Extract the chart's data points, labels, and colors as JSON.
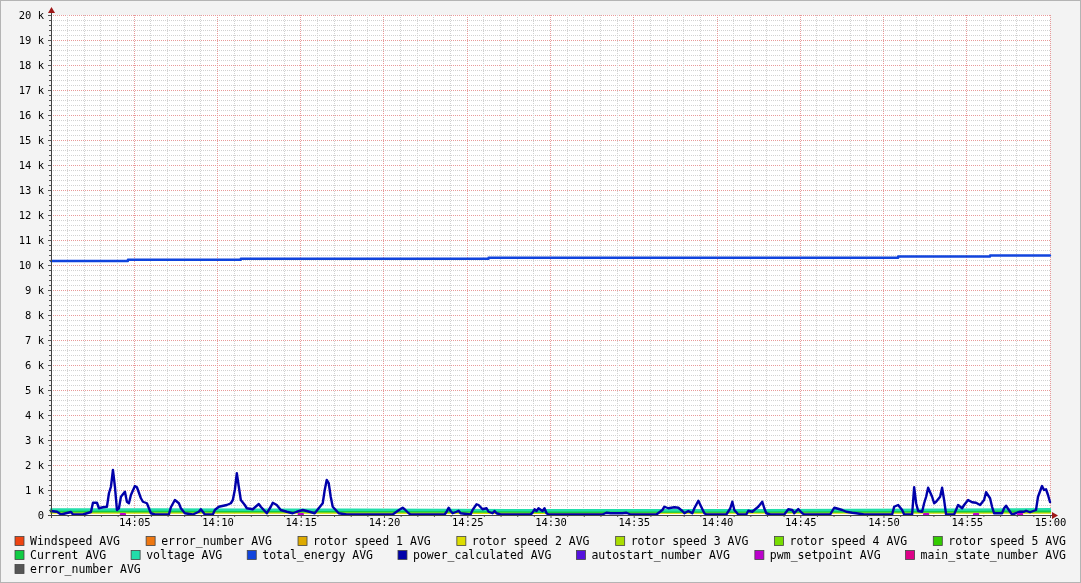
{
  "chart_data": {
    "type": "line",
    "xlim": [
      14,
      15
    ],
    "ylim": [
      0,
      20000
    ],
    "grid": true,
    "legend": "bottom",
    "xticks": [
      {
        "value": 14.0167,
        "label": null
      },
      {
        "value": 14.0333,
        "label": null
      },
      {
        "value": 14.05,
        "label": null
      },
      {
        "value": 14.0667,
        "label": null
      },
      {
        "value": 14.0833,
        "label": "14:05"
      },
      {
        "value": 14.1,
        "label": null
      },
      {
        "value": 14.1167,
        "label": null
      },
      {
        "value": 14.1333,
        "label": null
      },
      {
        "value": 14.15,
        "label": null
      },
      {
        "value": 14.1667,
        "label": "14:10"
      },
      {
        "value": 14.1833,
        "label": null
      },
      {
        "value": 14.2,
        "label": null
      },
      {
        "value": 14.2167,
        "label": null
      },
      {
        "value": 14.2333,
        "label": null
      },
      {
        "value": 14.25,
        "label": "14:15"
      },
      {
        "value": 14.2667,
        "label": null
      },
      {
        "value": 14.2833,
        "label": null
      },
      {
        "value": 14.3,
        "label": null
      },
      {
        "value": 14.3167,
        "label": null
      },
      {
        "value": 14.3333,
        "label": "14:20"
      },
      {
        "value": 14.35,
        "label": null
      },
      {
        "value": 14.3667,
        "label": null
      },
      {
        "value": 14.3833,
        "label": null
      },
      {
        "value": 14.4,
        "label": null
      },
      {
        "value": 14.4167,
        "label": "14:25"
      },
      {
        "value": 14.4333,
        "label": null
      },
      {
        "value": 14.45,
        "label": null
      },
      {
        "value": 14.4667,
        "label": null
      },
      {
        "value": 14.4833,
        "label": null
      },
      {
        "value": 14.5,
        "label": "14:30"
      },
      {
        "value": 14.5167,
        "label": null
      },
      {
        "value": 14.5333,
        "label": null
      },
      {
        "value": 14.55,
        "label": null
      },
      {
        "value": 14.5667,
        "label": null
      },
      {
        "value": 14.5833,
        "label": "14:35"
      },
      {
        "value": 14.6,
        "label": null
      },
      {
        "value": 14.6167,
        "label": null
      },
      {
        "value": 14.6333,
        "label": null
      },
      {
        "value": 14.65,
        "label": null
      },
      {
        "value": 14.6667,
        "label": "14:40"
      },
      {
        "value": 14.6833,
        "label": null
      },
      {
        "value": 14.7,
        "label": null
      },
      {
        "value": 14.7167,
        "label": null
      },
      {
        "value": 14.7333,
        "label": null
      },
      {
        "value": 14.75,
        "label": "14:45"
      },
      {
        "value": 14.7667,
        "label": null
      },
      {
        "value": 14.7833,
        "label": null
      },
      {
        "value": 14.8,
        "label": null
      },
      {
        "value": 14.8167,
        "label": null
      },
      {
        "value": 14.8333,
        "label": "14:50"
      },
      {
        "value": 14.85,
        "label": null
      },
      {
        "value": 14.8667,
        "label": null
      },
      {
        "value": 14.8833,
        "label": null
      },
      {
        "value": 14.9,
        "label": null
      },
      {
        "value": 14.9167,
        "label": "14:55"
      },
      {
        "value": 14.9333,
        "label": null
      },
      {
        "value": 14.95,
        "label": null
      },
      {
        "value": 14.9667,
        "label": null
      },
      {
        "value": 14.9833,
        "label": null
      },
      {
        "value": 15,
        "label": "15:00"
      }
    ],
    "yticks": [
      0,
      {
        "value": 200,
        "label": null
      },
      {
        "value": 400,
        "label": null
      },
      {
        "value": 600,
        "label": null
      },
      {
        "value": 800,
        "label": null
      },
      {
        "value": 1000,
        "label": "1 k"
      },
      {
        "value": 1200,
        "label": null
      },
      {
        "value": 1400,
        "label": null
      },
      {
        "value": 1600,
        "label": null
      },
      {
        "value": 1800,
        "label": null
      },
      {
        "value": 2000,
        "label": "2 k"
      },
      {
        "value": 2200,
        "label": null
      },
      {
        "value": 2400,
        "label": null
      },
      {
        "value": 2600,
        "label": null
      },
      {
        "value": 2800,
        "label": null
      },
      {
        "value": 3000,
        "label": "3 k"
      },
      {
        "value": 3200,
        "label": null
      },
      {
        "value": 3400,
        "label": null
      },
      {
        "value": 3600,
        "label": null
      },
      {
        "value": 3800,
        "label": null
      },
      {
        "value": 4000,
        "label": "4 k"
      },
      {
        "value": 4200,
        "label": null
      },
      {
        "value": 4400,
        "label": null
      },
      {
        "value": 4600,
        "label": null
      },
      {
        "value": 4800,
        "label": null
      },
      {
        "value": 5000,
        "label": "5 k"
      },
      {
        "value": 5200,
        "label": null
      },
      {
        "value": 5400,
        "label": null
      },
      {
        "value": 5600,
        "label": null
      },
      {
        "value": 5800,
        "label": null
      },
      {
        "value": 6000,
        "label": "6 k"
      },
      {
        "value": 6200,
        "label": null
      },
      {
        "value": 6400,
        "label": null
      },
      {
        "value": 6600,
        "label": null
      },
      {
        "value": 6800,
        "label": null
      },
      {
        "value": 7000,
        "label": "7 k"
      },
      {
        "value": 7200,
        "label": null
      },
      {
        "value": 7400,
        "label": null
      },
      {
        "value": 7600,
        "label": null
      },
      {
        "value": 7800,
        "label": null
      },
      {
        "value": 8000,
        "label": "8 k"
      },
      {
        "value": 8200,
        "label": null
      },
      {
        "value": 8400,
        "label": null
      },
      {
        "value": 8600,
        "label": null
      },
      {
        "value": 8800,
        "label": null
      },
      {
        "value": 9000,
        "label": "9 k"
      },
      {
        "value": 9200,
        "label": null
      },
      {
        "value": 9400,
        "label": null
      },
      {
        "value": 9600,
        "label": null
      },
      {
        "value": 9800,
        "label": null
      },
      {
        "value": 10000,
        "label": "10 k"
      },
      {
        "value": 10200,
        "label": null
      },
      {
        "value": 10400,
        "label": null
      },
      {
        "value": 10600,
        "label": null
      },
      {
        "value": 10800,
        "label": null
      },
      {
        "value": 11000,
        "label": "11 k"
      },
      {
        "value": 11200,
        "label": null
      },
      {
        "value": 11400,
        "label": null
      },
      {
        "value": 11600,
        "label": null
      },
      {
        "value": 11800,
        "label": null
      },
      {
        "value": 12000,
        "label": "12 k"
      },
      {
        "value": 12200,
        "label": null
      },
      {
        "value": 12400,
        "label": null
      },
      {
        "value": 12600,
        "label": null
      },
      {
        "value": 12800,
        "label": null
      },
      {
        "value": 13000,
        "label": "13 k"
      },
      {
        "value": 13200,
        "label": null
      },
      {
        "value": 13400,
        "label": null
      },
      {
        "value": 13600,
        "label": null
      },
      {
        "value": 13800,
        "label": null
      },
      {
        "value": 14000,
        "label": "14 k"
      },
      {
        "value": 14200,
        "label": null
      },
      {
        "value": 14400,
        "label": null
      },
      {
        "value": 14600,
        "label": null
      },
      {
        "value": 14800,
        "label": null
      },
      {
        "value": 15000,
        "label": "15 k"
      },
      {
        "value": 15200,
        "label": null
      },
      {
        "value": 15400,
        "label": null
      },
      {
        "value": 15600,
        "label": null
      },
      {
        "value": 15800,
        "label": null
      },
      {
        "value": 16000,
        "label": "16 k"
      },
      {
        "value": 16200,
        "label": null
      },
      {
        "value": 16400,
        "label": null
      },
      {
        "value": 16600,
        "label": null
      },
      {
        "value": 16800,
        "label": null
      },
      {
        "value": 17000,
        "label": "17 k"
      },
      {
        "value": 17200,
        "label": null
      },
      {
        "value": 17400,
        "label": null
      },
      {
        "value": 17600,
        "label": null
      },
      {
        "value": 17800,
        "label": null
      },
      {
        "value": 18000,
        "label": "18 k"
      },
      {
        "value": 18200,
        "label": null
      },
      {
        "value": 18400,
        "label": null
      },
      {
        "value": 18600,
        "label": null
      },
      {
        "value": 18800,
        "label": null
      },
      {
        "value": 19000,
        "label": "19 k"
      },
      {
        "value": 19200,
        "label": null
      },
      {
        "value": 19400,
        "label": null
      },
      {
        "value": 19600,
        "label": null
      },
      {
        "value": 19800,
        "label": null
      },
      {
        "value": 20000,
        "label": "20 k"
      }
    ],
    "series": [
      {
        "name": "Windspeed AVG",
        "color": "#ee4411"
      },
      {
        "name": "error_number AVG",
        "color": "#ee7711"
      },
      {
        "name": "rotor speed 1 AVG",
        "color": "#ddaa00"
      },
      {
        "name": "rotor speed 2 AVG",
        "color": "#dddd00",
        "x": [
          14,
          14.5,
          15
        ],
        "values": [
          100,
          90,
          100
        ]
      },
      {
        "name": "rotor speed 3 AVG",
        "color": "#aadd00"
      },
      {
        "name": "rotor speed 4 AVG",
        "color": "#77dd00"
      },
      {
        "name": "rotor speed 5 AVG",
        "color": "#33cc00"
      },
      {
        "name": "Current AVG",
        "color": "#11cc44",
        "x": [
          14,
          14.25,
          14.5,
          14.75,
          15
        ],
        "values": [
          150,
          150,
          130,
          140,
          150
        ]
      },
      {
        "name": "voltage AVG",
        "color": "#22ddaa",
        "x": [
          14,
          14.1,
          14.2,
          14.3,
          14.4,
          14.5,
          14.6,
          14.7,
          14.8,
          14.9,
          15
        ],
        "values": [
          220,
          220,
          210,
          210,
          200,
          190,
          190,
          190,
          200,
          210,
          230
        ]
      },
      {
        "name": "total_energy AVG",
        "color": "#1144dd",
        "type": "step",
        "x": [
          14,
          14.077,
          14.19,
          14.438,
          14.848,
          14.94,
          15
        ],
        "values": [
          10160,
          10210,
          10250,
          10290,
          10340,
          10380,
          10380
        ]
      },
      {
        "name": "power_calculated AVG",
        "color": "#0000aa",
        "x": [
          14,
          14.006,
          14.01,
          14.02,
          14.022,
          14.032,
          14.04,
          14.042,
          14.046,
          14.048,
          14.052,
          14.056,
          14.058,
          14.06,
          14.062,
          14.064,
          14.066,
          14.068,
          14.07,
          14.074,
          14.076,
          14.078,
          14.08,
          14.084,
          14.086,
          14.09,
          14.092,
          14.096,
          14.1,
          14.104,
          14.118,
          14.12,
          14.124,
          14.128,
          14.13,
          14.134,
          14.142,
          14.148,
          14.15,
          14.154,
          14.162,
          14.164,
          14.168,
          14.176,
          14.18,
          14.182,
          14.184,
          14.186,
          14.188,
          14.19,
          14.194,
          14.196,
          14.202,
          14.208,
          14.21,
          14.216,
          14.22,
          14.222,
          14.226,
          14.23,
          14.236,
          14.242,
          14.246,
          14.252,
          14.256,
          14.264,
          14.272,
          14.274,
          14.276,
          14.278,
          14.28,
          14.282,
          14.288,
          14.296,
          14.342,
          14.348,
          14.352,
          14.354,
          14.358,
          14.36,
          14.394,
          14.396,
          14.398,
          14.4,
          14.402,
          14.406,
          14.408,
          14.41,
          14.42,
          14.422,
          14.426,
          14.428,
          14.432,
          14.436,
          14.438,
          14.442,
          14.444,
          14.446,
          14.45,
          14.48,
          14.482,
          14.484,
          14.486,
          14.488,
          14.492,
          14.494,
          14.496,
          14.498,
          14.552,
          14.556,
          14.56,
          14.572,
          14.576,
          14.58,
          14.606,
          14.612,
          14.614,
          14.618,
          14.624,
          14.628,
          14.632,
          14.634,
          14.638,
          14.642,
          14.644,
          14.648,
          14.65,
          14.654,
          14.656,
          14.676,
          14.68,
          14.682,
          14.684,
          14.688,
          14.696,
          14.698,
          14.702,
          14.704,
          14.708,
          14.712,
          14.714,
          14.716,
          14.72,
          14.734,
          14.738,
          14.742,
          14.744,
          14.748,
          14.752,
          14.754,
          14.78,
          14.784,
          14.786,
          14.792,
          14.796,
          14.802,
          14.806,
          14.814,
          14.842,
          14.844,
          14.848,
          14.852,
          14.854,
          14.862,
          14.864,
          14.866,
          14.868,
          14.872,
          14.874,
          14.876,
          14.878,
          14.882,
          14.884,
          14.886,
          14.89,
          14.892,
          14.894,
          14.896,
          14.904,
          14.908,
          14.912,
          14.914,
          14.918,
          14.922,
          14.926,
          14.93,
          14.934,
          14.936,
          14.94,
          14.942,
          14.944,
          14.952,
          14.954,
          14.956,
          14.96,
          14.962,
          14.97,
          14.974,
          14.976,
          14.98,
          14.986,
          14.988,
          14.992,
          14.994,
          14.996,
          14.998,
          15
        ],
        "values": [
          160,
          130,
          20,
          120,
          20,
          20,
          120,
          490,
          490,
          270,
          310,
          330,
          870,
          1130,
          1800,
          1130,
          200,
          270,
          730,
          930,
          530,
          470,
          800,
          1160,
          1110,
          670,
          530,
          470,
          70,
          20,
          20,
          310,
          600,
          470,
          270,
          70,
          20,
          130,
          230,
          20,
          20,
          200,
          330,
          400,
          470,
          600,
          1000,
          1670,
          1130,
          600,
          400,
          270,
          230,
          440,
          330,
          70,
          330,
          490,
          400,
          200,
          130,
          70,
          130,
          200,
          160,
          70,
          470,
          1000,
          1400,
          1270,
          730,
          330,
          70,
          20,
          20,
          190,
          290,
          230,
          70,
          20,
          20,
          130,
          290,
          160,
          70,
          130,
          170,
          70,
          20,
          200,
          430,
          400,
          230,
          270,
          130,
          70,
          160,
          70,
          20,
          20,
          90,
          230,
          160,
          270,
          160,
          270,
          70,
          20,
          20,
          90,
          70,
          70,
          90,
          20,
          20,
          200,
          330,
          270,
          310,
          290,
          160,
          70,
          160,
          70,
          270,
          570,
          400,
          70,
          20,
          20,
          270,
          530,
          200,
          20,
          20,
          170,
          130,
          200,
          330,
          530,
          270,
          70,
          20,
          20,
          230,
          200,
          70,
          240,
          70,
          20,
          20,
          290,
          270,
          200,
          130,
          90,
          70,
          20,
          20,
          330,
          400,
          200,
          20,
          20,
          1110,
          470,
          160,
          130,
          470,
          730,
          1090,
          730,
          470,
          530,
          730,
          1090,
          600,
          20,
          20,
          400,
          270,
          400,
          600,
          510,
          490,
          400,
          600,
          910,
          670,
          330,
          70,
          70,
          270,
          370,
          130,
          20,
          130,
          130,
          170,
          110,
          200,
          730,
          1160,
          1000,
          1030,
          800,
          520
        ]
      },
      {
        "name": "autostart_number AVG",
        "color": "#5511dd"
      },
      {
        "name": "pwm_setpoint AVG",
        "color": "#bb00cc",
        "x": [
          14.07,
          14.074,
          14.076,
          14.248,
          14.252,
          14.254,
          14.874,
          14.878,
          14.88,
          14.924,
          14.928,
          14.93,
          14.968,
          14.972
        ],
        "values": [
          30,
          30,
          null,
          30,
          30,
          null,
          30,
          30,
          null,
          30,
          30,
          null,
          30,
          30
        ]
      },
      {
        "name": "main_state_number AVG",
        "color": "#dd0088"
      },
      {
        "name": "error_number AVG",
        "color": "#555555"
      }
    ]
  }
}
